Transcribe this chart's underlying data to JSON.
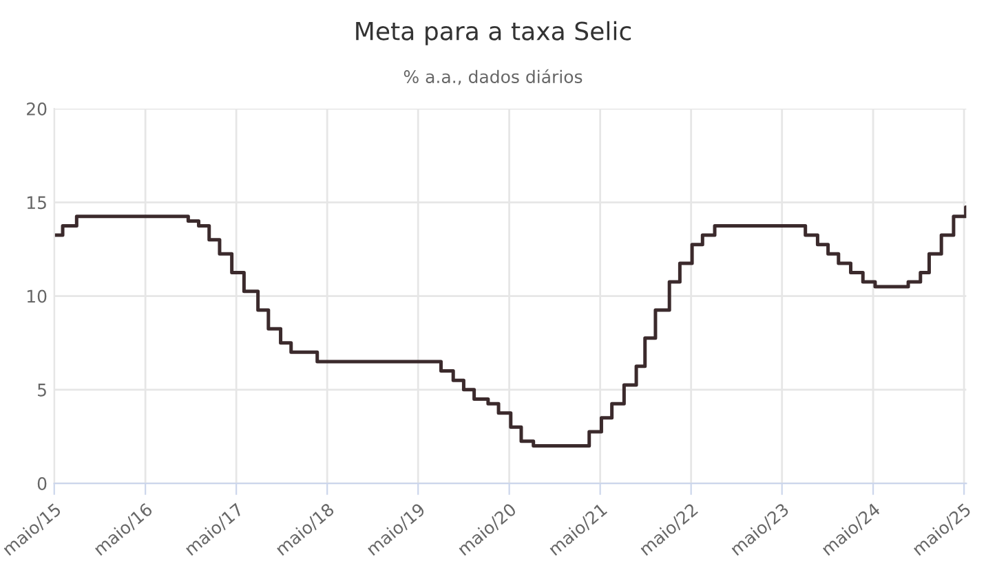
{
  "chart_data": {
    "type": "step",
    "title": "Meta para a taxa Selic",
    "subtitle": "% a.a., dados diários",
    "x": [
      "2015-05-01",
      "2015-06-04",
      "2015-07-30",
      "2016-10-20",
      "2016-12-01",
      "2017-01-12",
      "2017-02-23",
      "2017-04-13",
      "2017-06-01",
      "2017-07-27",
      "2017-09-07",
      "2017-10-26",
      "2017-12-07",
      "2018-03-22",
      "2019-08-01",
      "2019-09-19",
      "2019-10-31",
      "2019-12-12",
      "2020-02-06",
      "2020-03-19",
      "2020-05-07",
      "2020-06-18",
      "2020-08-06",
      "2021-03-18",
      "2021-05-06",
      "2021-06-17",
      "2021-08-05",
      "2021-09-23",
      "2021-10-28",
      "2021-12-09",
      "2022-02-03",
      "2022-03-17",
      "2022-05-05",
      "2022-06-16",
      "2022-08-04",
      "2023-08-03",
      "2023-09-21",
      "2023-11-02",
      "2023-12-14",
      "2024-02-01",
      "2024-03-21",
      "2024-05-09",
      "2024-09-19",
      "2024-11-07",
      "2024-12-12",
      "2025-01-30",
      "2025-03-20",
      "2025-05-08",
      "2025-05-10"
    ],
    "series": [
      {
        "color": "#3b2a2c",
        "values": [
          13.25,
          13.75,
          14.25,
          14.0,
          13.75,
          13.0,
          12.25,
          11.25,
          10.25,
          9.25,
          8.25,
          7.5,
          7.0,
          6.5,
          6.0,
          5.5,
          5.0,
          4.5,
          4.25,
          3.75,
          3.0,
          2.25,
          2.0,
          2.75,
          3.5,
          4.25,
          5.25,
          6.25,
          7.75,
          9.25,
          10.75,
          11.75,
          12.75,
          13.25,
          13.75,
          13.25,
          12.75,
          12.25,
          11.75,
          11.25,
          10.75,
          10.5,
          10.75,
          11.25,
          12.25,
          13.25,
          14.25,
          14.75,
          14.75
        ]
      }
    ],
    "xlim": [
      "2015-05-01",
      "2025-05-10"
    ],
    "xticks": [
      {
        "value": "2015-05-01",
        "label": "maio/15"
      },
      {
        "value": "2016-05-01",
        "label": "maio/16"
      },
      {
        "value": "2017-05-01",
        "label": "maio/17"
      },
      {
        "value": "2018-05-01",
        "label": "maio/18"
      },
      {
        "value": "2019-05-01",
        "label": "maio/19"
      },
      {
        "value": "2020-05-01",
        "label": "maio/20"
      },
      {
        "value": "2021-05-01",
        "label": "maio/21"
      },
      {
        "value": "2022-05-01",
        "label": "maio/22"
      },
      {
        "value": "2023-05-01",
        "label": "maio/23"
      },
      {
        "value": "2024-05-01",
        "label": "maio/24"
      },
      {
        "value": "2025-05-01",
        "label": "maio/25"
      }
    ],
    "ylim": [
      0,
      20
    ],
    "yticks": [
      0,
      5,
      10,
      15,
      20
    ],
    "grid": true,
    "line_style": "solid"
  }
}
